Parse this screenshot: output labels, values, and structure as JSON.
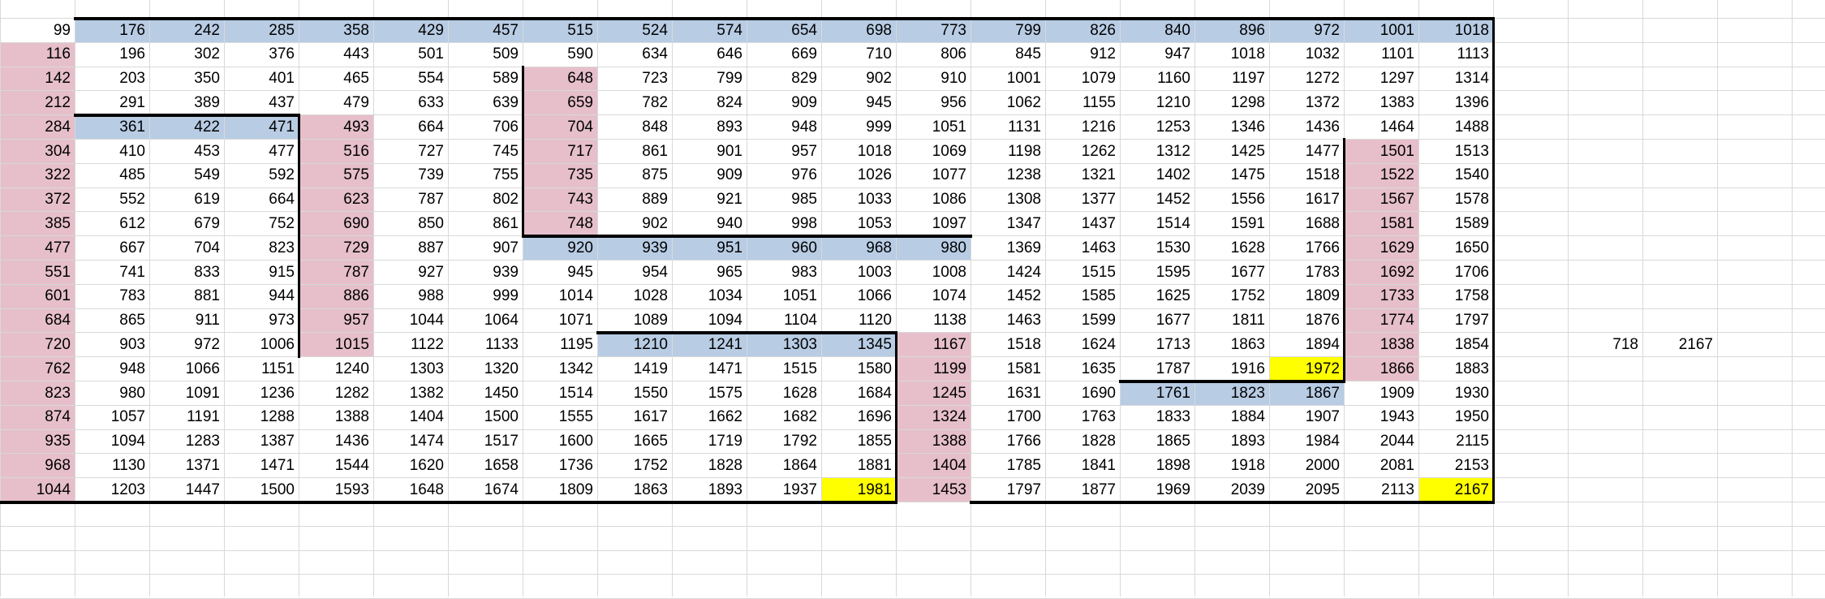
{
  "colors": {
    "blue": "#b8cce4",
    "pink": "#e6bfcb",
    "yellow": "#ffff00",
    "gridline": "#d9d9d9",
    "border": "#000000"
  },
  "grid": [
    [
      "99",
      "176",
      "242",
      "285",
      "358",
      "429",
      "457",
      "515",
      "524",
      "574",
      "654",
      "698",
      "773",
      "799",
      "826",
      "840",
      "896",
      "972",
      "1001",
      "1018"
    ],
    [
      "116",
      "196",
      "302",
      "376",
      "443",
      "501",
      "509",
      "590",
      "634",
      "646",
      "669",
      "710",
      "806",
      "845",
      "912",
      "947",
      "1018",
      "1032",
      "1101",
      "1113"
    ],
    [
      "142",
      "203",
      "350",
      "401",
      "465",
      "554",
      "589",
      "648",
      "723",
      "799",
      "829",
      "902",
      "910",
      "1001",
      "1079",
      "1160",
      "1197",
      "1272",
      "1297",
      "1314"
    ],
    [
      "212",
      "291",
      "389",
      "437",
      "479",
      "633",
      "639",
      "659",
      "782",
      "824",
      "909",
      "945",
      "956",
      "1062",
      "1155",
      "1210",
      "1298",
      "1372",
      "1383",
      "1396"
    ],
    [
      "284",
      "361",
      "422",
      "471",
      "493",
      "664",
      "706",
      "704",
      "848",
      "893",
      "948",
      "999",
      "1051",
      "1131",
      "1216",
      "1253",
      "1346",
      "1436",
      "1464",
      "1488"
    ],
    [
      "304",
      "410",
      "453",
      "477",
      "516",
      "727",
      "745",
      "717",
      "861",
      "901",
      "957",
      "1018",
      "1069",
      "1198",
      "1262",
      "1312",
      "1425",
      "1477",
      "1501",
      "1513"
    ],
    [
      "322",
      "485",
      "549",
      "592",
      "575",
      "739",
      "755",
      "735",
      "875",
      "909",
      "976",
      "1026",
      "1077",
      "1238",
      "1321",
      "1402",
      "1475",
      "1518",
      "1522",
      "1540"
    ],
    [
      "372",
      "552",
      "619",
      "664",
      "623",
      "787",
      "802",
      "743",
      "889",
      "921",
      "985",
      "1033",
      "1086",
      "1308",
      "1377",
      "1452",
      "1556",
      "1617",
      "1567",
      "1578"
    ],
    [
      "385",
      "612",
      "679",
      "752",
      "690",
      "850",
      "861",
      "748",
      "902",
      "940",
      "998",
      "1053",
      "1097",
      "1347",
      "1437",
      "1514",
      "1591",
      "1688",
      "1581",
      "1589"
    ],
    [
      "477",
      "667",
      "704",
      "823",
      "729",
      "887",
      "907",
      "920",
      "939",
      "951",
      "960",
      "968",
      "980",
      "1369",
      "1463",
      "1530",
      "1628",
      "1766",
      "1629",
      "1650"
    ],
    [
      "551",
      "741",
      "833",
      "915",
      "787",
      "927",
      "939",
      "945",
      "954",
      "965",
      "983",
      "1003",
      "1008",
      "1424",
      "1515",
      "1595",
      "1677",
      "1783",
      "1692",
      "1706"
    ],
    [
      "601",
      "783",
      "881",
      "944",
      "886",
      "988",
      "999",
      "1014",
      "1028",
      "1034",
      "1051",
      "1066",
      "1074",
      "1452",
      "1585",
      "1625",
      "1752",
      "1809",
      "1733",
      "1758"
    ],
    [
      "684",
      "865",
      "911",
      "973",
      "957",
      "1044",
      "1064",
      "1071",
      "1089",
      "1094",
      "1104",
      "1120",
      "1138",
      "1463",
      "1599",
      "1677",
      "1811",
      "1876",
      "1774",
      "1797"
    ],
    [
      "720",
      "903",
      "972",
      "1006",
      "1015",
      "1122",
      "1133",
      "1195",
      "1210",
      "1241",
      "1303",
      "1345",
      "1167",
      "1518",
      "1624",
      "1713",
      "1863",
      "1894",
      "1838",
      "1854"
    ],
    [
      "762",
      "948",
      "1066",
      "1151",
      "1240",
      "1303",
      "1320",
      "1342",
      "1419",
      "1471",
      "1515",
      "1580",
      "1199",
      "1581",
      "1635",
      "1787",
      "1916",
      "1972",
      "1866",
      "1883"
    ],
    [
      "823",
      "980",
      "1091",
      "1236",
      "1282",
      "1382",
      "1450",
      "1514",
      "1550",
      "1575",
      "1628",
      "1684",
      "1245",
      "1631",
      "1690",
      "1761",
      "1823",
      "1867",
      "1909",
      "1930"
    ],
    [
      "874",
      "1057",
      "1191",
      "1288",
      "1388",
      "1404",
      "1500",
      "1555",
      "1617",
      "1662",
      "1682",
      "1696",
      "1324",
      "1700",
      "1763",
      "1833",
      "1884",
      "1907",
      "1943",
      "1950"
    ],
    [
      "935",
      "1094",
      "1283",
      "1387",
      "1436",
      "1474",
      "1517",
      "1600",
      "1665",
      "1719",
      "1792",
      "1855",
      "1388",
      "1766",
      "1828",
      "1865",
      "1893",
      "1984",
      "2044",
      "2115"
    ],
    [
      "968",
      "1130",
      "1371",
      "1471",
      "1544",
      "1620",
      "1658",
      "1736",
      "1752",
      "1828",
      "1864",
      "1881",
      "1404",
      "1785",
      "1841",
      "1898",
      "1918",
      "2000",
      "2081",
      "2153"
    ],
    [
      "1044",
      "1203",
      "1447",
      "1500",
      "1593",
      "1648",
      "1674",
      "1809",
      "1863",
      "1893",
      "1937",
      "1981",
      "1453",
      "1797",
      "1877",
      "1969",
      "2039",
      "2095",
      "2113",
      "2167"
    ]
  ],
  "side_values": [
    "718",
    "2167"
  ]
}
